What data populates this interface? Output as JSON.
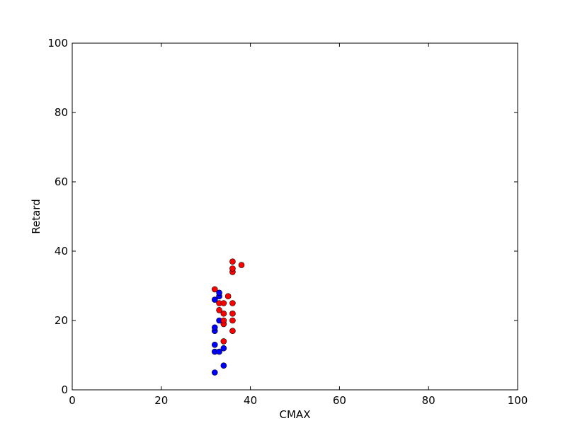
{
  "chart_data": {
    "type": "scatter",
    "title": "",
    "xlabel": "CMAX",
    "ylabel": "Retard",
    "xlim": [
      0,
      100
    ],
    "ylim": [
      0,
      100
    ],
    "xticks": [
      "0",
      "20",
      "40",
      "60",
      "80",
      "100"
    ],
    "yticks": [
      "0",
      "20",
      "40",
      "60",
      "80",
      "100"
    ],
    "grid": false,
    "series": [
      {
        "color": "#0000ff",
        "points": [
          [
            32,
            5
          ],
          [
            32,
            11
          ],
          [
            32,
            13
          ],
          [
            32,
            17
          ],
          [
            32,
            18
          ],
          [
            32,
            26
          ],
          [
            33,
            11
          ],
          [
            33,
            20
          ],
          [
            33,
            27
          ],
          [
            33,
            28
          ],
          [
            34,
            7
          ],
          [
            34,
            12
          ]
        ]
      },
      {
        "color": "#ff0000",
        "points": [
          [
            32,
            29
          ],
          [
            33,
            23
          ],
          [
            33,
            25
          ],
          [
            34,
            14
          ],
          [
            34,
            19
          ],
          [
            34,
            20
          ],
          [
            34,
            22
          ],
          [
            34,
            25
          ],
          [
            35,
            27
          ],
          [
            36,
            17
          ],
          [
            36,
            20
          ],
          [
            36,
            22
          ],
          [
            36,
            25
          ],
          [
            36,
            34
          ],
          [
            36,
            35
          ],
          [
            36,
            37
          ],
          [
            38,
            36
          ]
        ]
      }
    ]
  }
}
